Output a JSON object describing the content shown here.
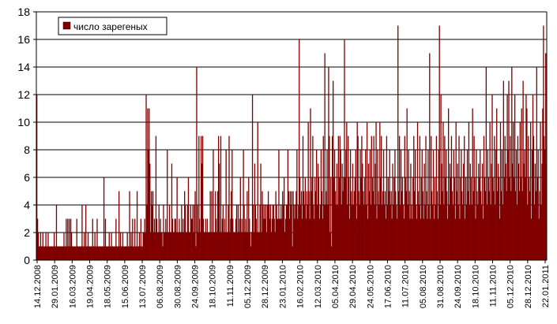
{
  "chart_data": {
    "type": "bar",
    "series": [
      {
        "name": "число зарегеных",
        "color": "#800000",
        "values": [
          12,
          3,
          2,
          1,
          1,
          2,
          1,
          1,
          2,
          1,
          1,
          1,
          2,
          1,
          1,
          2,
          1,
          1,
          1,
          1,
          1,
          1,
          1,
          2,
          1,
          1,
          4,
          1,
          1,
          1,
          1,
          1,
          1,
          1,
          1,
          1,
          2,
          1,
          1,
          3,
          1,
          3,
          1,
          3,
          1,
          3,
          2,
          1,
          1,
          1,
          1,
          1,
          1,
          3,
          1,
          1,
          1,
          1,
          1,
          1,
          4,
          1,
          1,
          2,
          1,
          4,
          1,
          1,
          2,
          1,
          1,
          1,
          1,
          1,
          3,
          1,
          1,
          2,
          1,
          1,
          3,
          1,
          1,
          1,
          1,
          1,
          1,
          1,
          1,
          6,
          1,
          3,
          1,
          1,
          1,
          1,
          2,
          1,
          1,
          2,
          1,
          1,
          1,
          1,
          1,
          3,
          1,
          1,
          1,
          5,
          1,
          2,
          1,
          1,
          2,
          1,
          1,
          1,
          1,
          1,
          2,
          1,
          1,
          5,
          1,
          2,
          1,
          3,
          1,
          1,
          3,
          1,
          1,
          5,
          1,
          1,
          2,
          1,
          3,
          1,
          1,
          2,
          2,
          3,
          2,
          12,
          4,
          11,
          8,
          11,
          7,
          2,
          5,
          4,
          5,
          2,
          3,
          2,
          9,
          3,
          2,
          2,
          4,
          2,
          3,
          2,
          2,
          1,
          4,
          2,
          2,
          3,
          2,
          8,
          2,
          2,
          4,
          2,
          2,
          7,
          3,
          2,
          2,
          3,
          3,
          2,
          6,
          2,
          2,
          3,
          2,
          2,
          4,
          2,
          3,
          2,
          5,
          4,
          2,
          2,
          4,
          6,
          2,
          2,
          4,
          3,
          3,
          4,
          2,
          4,
          5,
          1,
          14,
          4,
          2,
          9,
          3,
          2,
          9,
          7,
          9,
          3,
          2,
          2,
          3,
          2,
          3,
          2,
          2,
          2,
          5,
          2,
          5,
          2,
          8,
          2,
          2,
          5,
          3,
          2,
          5,
          9,
          7,
          2,
          9,
          2,
          3,
          4,
          2,
          3,
          2,
          8,
          2,
          2,
          4,
          9,
          2,
          3,
          5,
          8,
          3,
          2,
          2,
          2,
          3,
          4,
          2,
          4,
          2,
          3,
          6,
          2,
          3,
          2,
          8,
          4,
          2,
          3,
          2,
          5,
          2,
          6,
          3,
          2,
          1,
          2,
          12,
          4,
          2,
          7,
          4,
          3,
          2,
          10,
          2,
          2,
          4,
          7,
          2,
          5,
          4,
          3,
          4,
          3,
          4,
          2,
          4,
          5,
          4,
          3,
          4,
          2,
          3,
          4,
          4,
          3,
          2,
          5,
          4,
          3,
          3,
          8,
          3,
          3,
          4,
          3,
          5,
          4,
          6,
          2,
          3,
          4,
          4,
          8,
          5,
          3,
          5,
          4,
          5,
          1,
          5,
          4,
          3,
          4,
          5,
          8,
          3,
          4,
          16,
          6,
          4,
          5,
          3,
          9,
          5,
          4,
          6,
          3,
          5,
          4,
          10,
          5,
          3,
          11,
          5,
          6,
          9,
          4,
          3,
          6,
          5,
          8,
          4,
          7,
          6,
          3,
          4,
          8,
          5,
          3,
          9,
          4,
          15,
          4,
          5,
          8,
          4,
          14,
          9,
          2,
          6,
          1,
          9,
          13,
          6,
          8,
          5,
          4,
          7,
          4,
          9,
          6,
          9,
          8,
          4,
          7,
          5,
          6,
          16,
          6,
          8,
          10,
          4,
          9,
          6,
          3,
          8,
          5,
          4,
          7,
          4,
          5,
          6,
          8,
          3,
          10,
          9,
          5,
          4,
          8,
          6,
          9,
          7,
          5,
          4,
          6,
          8,
          4,
          10,
          3,
          7,
          5,
          8,
          4,
          9,
          6,
          5,
          9,
          4,
          7,
          10,
          3,
          8,
          5,
          4,
          10,
          6,
          9,
          4,
          5,
          8,
          4,
          5,
          3,
          9,
          4,
          6,
          5,
          8,
          4,
          5,
          3,
          7,
          4,
          6,
          8,
          5,
          4,
          3,
          17,
          5,
          9,
          4,
          8,
          5,
          6,
          4,
          3,
          9,
          6,
          5,
          11,
          4,
          8,
          5,
          3,
          7,
          4,
          3,
          6,
          9,
          5,
          8,
          4,
          3,
          10,
          5,
          4,
          9,
          3,
          6,
          8,
          5,
          3,
          7,
          4,
          9,
          5,
          3,
          8,
          4,
          15,
          3,
          9,
          5,
          4,
          8,
          3,
          6,
          4,
          9,
          5,
          3,
          8,
          17,
          4,
          12,
          7,
          5,
          10,
          4,
          9,
          6,
          8,
          5,
          3,
          11,
          4,
          7,
          6,
          9,
          5,
          4,
          8,
          6,
          3,
          10,
          5,
          7,
          4,
          9,
          3,
          6,
          8,
          5,
          4,
          7,
          9,
          3,
          6,
          4,
          8,
          5,
          10,
          4,
          7,
          6,
          4,
          11,
          5,
          9,
          6,
          3,
          8,
          5,
          4,
          7,
          6,
          8,
          5,
          4,
          7,
          3,
          9,
          6,
          5,
          14,
          4,
          8,
          6,
          5,
          10,
          4,
          7,
          12,
          6,
          5,
          9,
          4,
          8,
          11,
          5,
          7,
          6,
          3,
          10,
          5,
          8,
          4,
          13,
          6,
          9,
          7,
          5,
          12,
          8,
          13,
          6,
          9,
          5,
          14,
          7,
          10,
          6,
          12,
          5,
          8,
          4,
          9,
          7,
          5,
          10,
          6,
          11,
          5,
          13,
          7,
          8,
          6,
          12,
          11,
          4,
          9,
          6,
          5,
          10,
          3,
          8,
          12,
          9,
          4,
          7,
          5,
          14,
          6,
          8,
          3,
          5,
          10,
          4,
          7,
          11,
          17,
          9,
          8,
          15,
          7
        ]
      }
    ],
    "x_ticks": [
      "14.12.2008",
      "29.01.2009",
      "16.03.2009",
      "19.04.2009",
      "18.05.2009",
      "15.06.2009",
      "13.07.2009",
      "06.08.2009",
      "30.08.2009",
      "24.09.2009",
      "18.10.2009",
      "11.11.2009",
      "05.12.2009",
      "28.12.2009",
      "23.01.2010",
      "16.02.2010",
      "12.03.2010",
      "05.04.2010",
      "29.04.2010",
      "24.05.2010",
      "17.06.2010",
      "11.07.2010",
      "05.08.2010",
      "31.08.2010",
      "24.09.2010",
      "18.10.2010",
      "11.11.2010",
      "05.12.2010",
      "28.12.2010",
      "22.01.2011"
    ],
    "ylim": [
      0,
      18
    ],
    "yticks": [
      0,
      2,
      4,
      6,
      8,
      10,
      12,
      14,
      16,
      18
    ],
    "grid": true,
    "legend_position": "top-left",
    "title": "",
    "xlabel": "",
    "ylabel": ""
  }
}
